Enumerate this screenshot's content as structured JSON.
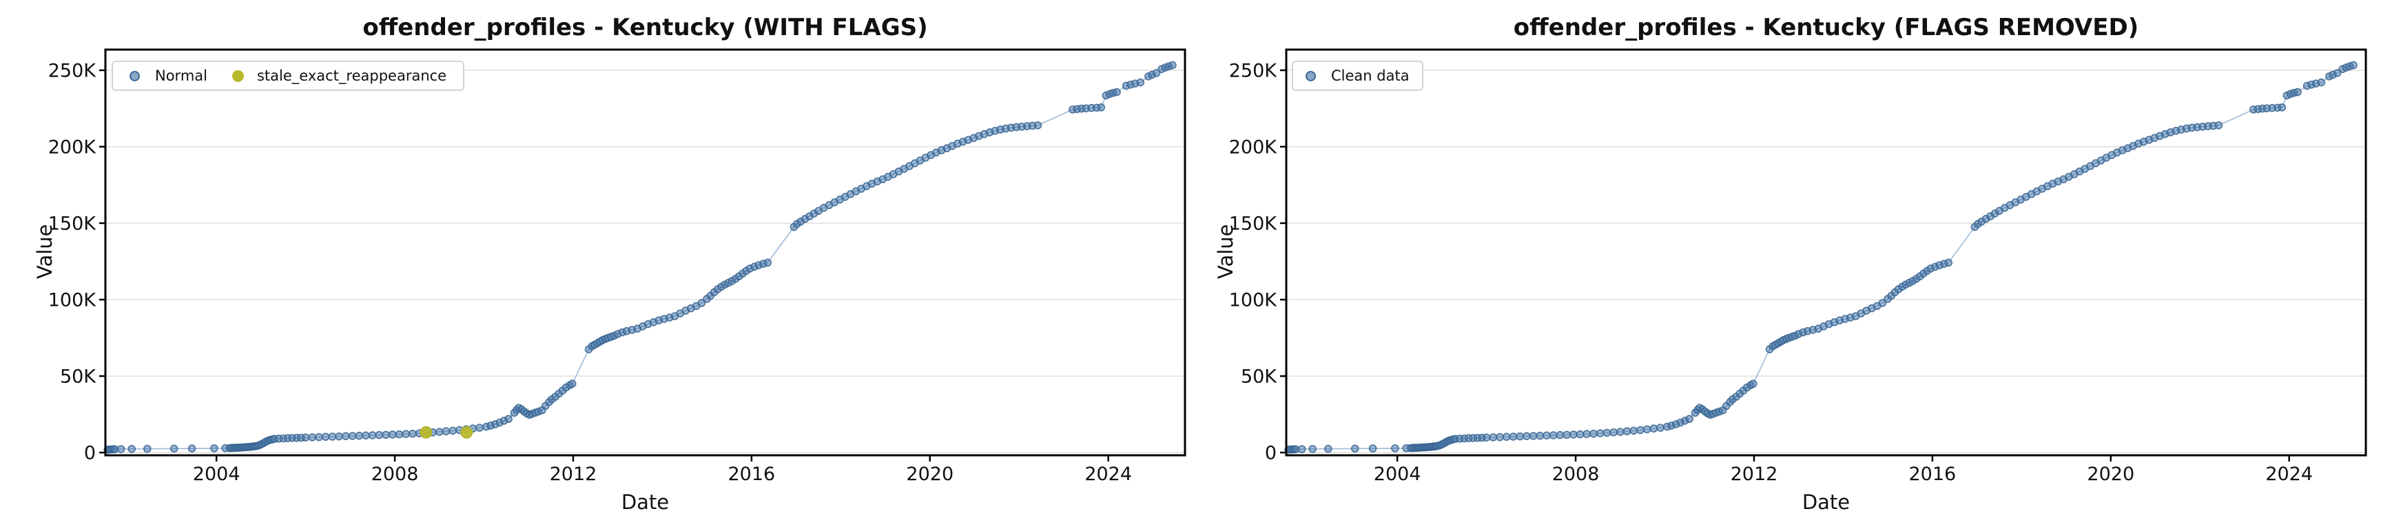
{
  "figure": {
    "background": "#ffffff"
  },
  "styles": {
    "point_blue": "#4a7aad",
    "point_blue_edge": "#35618e",
    "flag_yellow": "#b9b92c",
    "grid_color": "#e7e7e7",
    "spine_color": "#000000"
  },
  "chart_data": {
    "type": "scatter",
    "panels": [
      {
        "id": "with-flags",
        "title": "offender_profiles - Kentucky (WITH FLAGS)",
        "legend": [
          {
            "label": "Normal",
            "marker": "blue-dot"
          },
          {
            "label": "stale_exact_reappearance",
            "marker": "yellow-dot"
          }
        ],
        "series": [
          "normal",
          "flagged"
        ]
      },
      {
        "id": "flags-removed",
        "title": "offender_profiles - Kentucky (FLAGS REMOVED)",
        "legend": [
          {
            "label": "Clean data",
            "marker": "blue-dot"
          }
        ],
        "series": [
          "normal"
        ]
      }
    ],
    "x_axis": {
      "label": "Date",
      "range": [
        2001.51,
        2025.72
      ],
      "ticks": [
        2004,
        2008,
        2012,
        2016,
        2020,
        2024
      ],
      "tick_labels": [
        "2004",
        "2008",
        "2012",
        "2016",
        "2020",
        "2024"
      ]
    },
    "y_axis": {
      "label": "Value",
      "range": [
        -1800,
        263500
      ],
      "ticks": [
        0,
        50000,
        100000,
        150000,
        200000,
        250000
      ],
      "tick_labels": [
        "0",
        "50K",
        "100K",
        "150K",
        "200K",
        "250K"
      ],
      "grid": true
    },
    "series": {
      "normal": {
        "name": "Normal",
        "color": "#4a7aad",
        "marker_radius": 5,
        "points": [
          [
            2001.56,
            1900
          ],
          [
            2001.6,
            2000
          ],
          [
            2001.64,
            2050
          ],
          [
            2001.68,
            2100
          ],
          [
            2001.72,
            2150
          ],
          [
            2001.86,
            2250
          ],
          [
            2002.1,
            2350
          ],
          [
            2002.45,
            2450
          ],
          [
            2003.05,
            2550
          ],
          [
            2003.45,
            2650
          ],
          [
            2003.95,
            2750
          ],
          [
            2004.2,
            2850
          ],
          [
            2004.3,
            2950
          ],
          [
            2004.34,
            3000
          ],
          [
            2004.38,
            3050
          ],
          [
            2004.42,
            3100
          ],
          [
            2004.46,
            3150
          ],
          [
            2004.5,
            3200
          ],
          [
            2004.54,
            3280
          ],
          [
            2004.58,
            3360
          ],
          [
            2004.62,
            3440
          ],
          [
            2004.66,
            3520
          ],
          [
            2004.7,
            3600
          ],
          [
            2004.74,
            3700
          ],
          [
            2004.78,
            3800
          ],
          [
            2004.82,
            3950
          ],
          [
            2004.86,
            4100
          ],
          [
            2004.9,
            4300
          ],
          [
            2004.95,
            4700
          ],
          [
            2005.0,
            5300
          ],
          [
            2005.05,
            6100
          ],
          [
            2005.1,
            7000
          ],
          [
            2005.15,
            7700
          ],
          [
            2005.2,
            8200
          ],
          [
            2005.25,
            8600
          ],
          [
            2005.3,
            8900
          ],
          [
            2005.4,
            9100
          ],
          [
            2005.5,
            9250
          ],
          [
            2005.6,
            9400
          ],
          [
            2005.7,
            9500
          ],
          [
            2005.8,
            9600
          ],
          [
            2005.9,
            9700
          ],
          [
            2006.0,
            9800
          ],
          [
            2006.15,
            9950
          ],
          [
            2006.3,
            10100
          ],
          [
            2006.45,
            10250
          ],
          [
            2006.6,
            10400
          ],
          [
            2006.75,
            10550
          ],
          [
            2006.9,
            10700
          ],
          [
            2007.05,
            10850
          ],
          [
            2007.2,
            11000
          ],
          [
            2007.35,
            11150
          ],
          [
            2007.5,
            11300
          ],
          [
            2007.65,
            11450
          ],
          [
            2007.8,
            11600
          ],
          [
            2007.95,
            11750
          ],
          [
            2008.1,
            11900
          ],
          [
            2008.25,
            12100
          ],
          [
            2008.4,
            12300
          ],
          [
            2008.55,
            12600
          ],
          [
            2008.7,
            12900
          ],
          [
            2008.85,
            13200
          ],
          [
            2009.0,
            13500
          ],
          [
            2009.15,
            13900
          ],
          [
            2009.3,
            14300
          ],
          [
            2009.45,
            14700
          ],
          [
            2009.6,
            15200
          ],
          [
            2009.75,
            15700
          ],
          [
            2009.9,
            16200
          ],
          [
            2010.05,
            16900
          ],
          [
            2010.15,
            17600
          ],
          [
            2010.25,
            18500
          ],
          [
            2010.35,
            19600
          ],
          [
            2010.45,
            20800
          ],
          [
            2010.55,
            22000
          ],
          [
            2010.68,
            26000
          ],
          [
            2010.73,
            27800
          ],
          [
            2010.78,
            29300
          ],
          [
            2010.84,
            28300
          ],
          [
            2010.9,
            26800
          ],
          [
            2010.96,
            25600
          ],
          [
            2011.02,
            24700
          ],
          [
            2011.08,
            25300
          ],
          [
            2011.15,
            26100
          ],
          [
            2011.22,
            26800
          ],
          [
            2011.3,
            27600
          ],
          [
            2011.38,
            30500
          ],
          [
            2011.46,
            33000
          ],
          [
            2011.52,
            34800
          ],
          [
            2011.6,
            36500
          ],
          [
            2011.68,
            38500
          ],
          [
            2011.76,
            40500
          ],
          [
            2011.84,
            42500
          ],
          [
            2011.92,
            44000
          ],
          [
            2011.98,
            45000
          ],
          [
            2012.35,
            67500
          ],
          [
            2012.42,
            69500
          ],
          [
            2012.48,
            70500
          ],
          [
            2012.54,
            71500
          ],
          [
            2012.6,
            72500
          ],
          [
            2012.66,
            73500
          ],
          [
            2012.72,
            74300
          ],
          [
            2012.78,
            75000
          ],
          [
            2012.85,
            75700
          ],
          [
            2012.92,
            76400
          ],
          [
            2013.0,
            77500
          ],
          [
            2013.1,
            78600
          ],
          [
            2013.2,
            79400
          ],
          [
            2013.32,
            80200
          ],
          [
            2013.44,
            81000
          ],
          [
            2013.56,
            82500
          ],
          [
            2013.68,
            84000
          ],
          [
            2013.8,
            85200
          ],
          [
            2013.92,
            86400
          ],
          [
            2014.04,
            87400
          ],
          [
            2014.16,
            88300
          ],
          [
            2014.28,
            89200
          ],
          [
            2014.4,
            91000
          ],
          [
            2014.52,
            92800
          ],
          [
            2014.64,
            94300
          ],
          [
            2014.76,
            95800
          ],
          [
            2014.88,
            97800
          ],
          [
            2015.0,
            100500
          ],
          [
            2015.08,
            102500
          ],
          [
            2015.16,
            104800
          ],
          [
            2015.24,
            106800
          ],
          [
            2015.32,
            108400
          ],
          [
            2015.4,
            109800
          ],
          [
            2015.48,
            111000
          ],
          [
            2015.56,
            112200
          ],
          [
            2015.64,
            113600
          ],
          [
            2015.72,
            115200
          ],
          [
            2015.8,
            117000
          ],
          [
            2015.88,
            118800
          ],
          [
            2015.96,
            120300
          ],
          [
            2016.06,
            121500
          ],
          [
            2016.16,
            122500
          ],
          [
            2016.26,
            123400
          ],
          [
            2016.36,
            124200
          ],
          [
            2016.95,
            147500
          ],
          [
            2017.02,
            149500
          ],
          [
            2017.1,
            151000
          ],
          [
            2017.2,
            152800
          ],
          [
            2017.3,
            154500
          ],
          [
            2017.4,
            156300
          ],
          [
            2017.5,
            158000
          ],
          [
            2017.62,
            160000
          ],
          [
            2017.74,
            161800
          ],
          [
            2017.86,
            163600
          ],
          [
            2017.98,
            165400
          ],
          [
            2018.1,
            167200
          ],
          [
            2018.22,
            169000
          ],
          [
            2018.34,
            170800
          ],
          [
            2018.46,
            172500
          ],
          [
            2018.58,
            174200
          ],
          [
            2018.7,
            175800
          ],
          [
            2018.82,
            177300
          ],
          [
            2018.94,
            178700
          ],
          [
            2019.06,
            180300
          ],
          [
            2019.18,
            182000
          ],
          [
            2019.3,
            183800
          ],
          [
            2019.42,
            185500
          ],
          [
            2019.54,
            187300
          ],
          [
            2019.66,
            189200
          ],
          [
            2019.78,
            191000
          ],
          [
            2019.9,
            192800
          ],
          [
            2020.02,
            194500
          ],
          [
            2020.14,
            196200
          ],
          [
            2020.26,
            197700
          ],
          [
            2020.38,
            199000
          ],
          [
            2020.5,
            200500
          ],
          [
            2020.62,
            202000
          ],
          [
            2020.74,
            203300
          ],
          [
            2020.86,
            204500
          ],
          [
            2020.98,
            205700
          ],
          [
            2021.1,
            207000
          ],
          [
            2021.22,
            208300
          ],
          [
            2021.34,
            209400
          ],
          [
            2021.46,
            210400
          ],
          [
            2021.58,
            211200
          ],
          [
            2021.7,
            211900
          ],
          [
            2021.82,
            212400
          ],
          [
            2021.94,
            212800
          ],
          [
            2022.06,
            213100
          ],
          [
            2022.18,
            213400
          ],
          [
            2022.3,
            213700
          ],
          [
            2022.42,
            214000
          ],
          [
            2023.2,
            224300
          ],
          [
            2023.3,
            224600
          ],
          [
            2023.4,
            224900
          ],
          [
            2023.5,
            225100
          ],
          [
            2023.62,
            225300
          ],
          [
            2023.74,
            225500
          ],
          [
            2023.84,
            225700
          ],
          [
            2023.95,
            233500
          ],
          [
            2024.03,
            234500
          ],
          [
            2024.11,
            235200
          ],
          [
            2024.19,
            235700
          ],
          [
            2024.4,
            239800
          ],
          [
            2024.5,
            240600
          ],
          [
            2024.6,
            241300
          ],
          [
            2024.72,
            242000
          ],
          [
            2024.9,
            246000
          ],
          [
            2024.98,
            247000
          ],
          [
            2025.08,
            248200
          ],
          [
            2025.2,
            250800
          ],
          [
            2025.28,
            251800
          ],
          [
            2025.36,
            252600
          ],
          [
            2025.44,
            253300
          ]
        ]
      },
      "flagged": {
        "name": "stale_exact_reappearance",
        "color": "#b9b92c",
        "marker_radius": 8.5,
        "points": [
          [
            2008.7,
            13200
          ],
          [
            2009.61,
            13200
          ]
        ]
      }
    }
  }
}
